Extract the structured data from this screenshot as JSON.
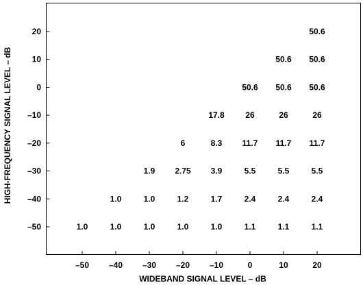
{
  "chart_data": {
    "type": "table",
    "title": "",
    "xlabel": "WIDEBAND SIGNAL LEVEL – dB",
    "ylabel": "HIGH-FREQUENCY SIGNAL LEVEL – dB",
    "x_ticks": [
      "–50",
      "–40",
      "–30",
      "–20",
      "–10",
      "0",
      "10",
      "20"
    ],
    "y_ticks": [
      "20",
      "10",
      "0",
      "–10",
      "–20",
      "–30",
      "–40",
      "–50"
    ],
    "x_values": [
      -50,
      -40,
      -30,
      -20,
      -10,
      0,
      10,
      20
    ],
    "y_values": [
      20,
      10,
      0,
      -10,
      -20,
      -30,
      -40,
      -50
    ],
    "xlim": [
      -60,
      30
    ],
    "ylim": [
      -60,
      30
    ],
    "grid": false,
    "cells": [
      {
        "x": 20,
        "y": 20,
        "label": "50.6"
      },
      {
        "x": 10,
        "y": 10,
        "label": "50.6"
      },
      {
        "x": 20,
        "y": 10,
        "label": "50.6"
      },
      {
        "x": 0,
        "y": 0,
        "label": "50.6"
      },
      {
        "x": 10,
        "y": 0,
        "label": "50.6"
      },
      {
        "x": 20,
        "y": 0,
        "label": "50.6"
      },
      {
        "x": -10,
        "y": -10,
        "label": "17.8"
      },
      {
        "x": 0,
        "y": -10,
        "label": "26"
      },
      {
        "x": 10,
        "y": -10,
        "label": "26"
      },
      {
        "x": 20,
        "y": -10,
        "label": "26"
      },
      {
        "x": -20,
        "y": -20,
        "label": "6"
      },
      {
        "x": -10,
        "y": -20,
        "label": "8.3"
      },
      {
        "x": 0,
        "y": -20,
        "label": "11.7"
      },
      {
        "x": 10,
        "y": -20,
        "label": "11.7"
      },
      {
        "x": 20,
        "y": -20,
        "label": "11.7"
      },
      {
        "x": -30,
        "y": -30,
        "label": "1.9"
      },
      {
        "x": -20,
        "y": -30,
        "label": "2.75"
      },
      {
        "x": -10,
        "y": -30,
        "label": "3.9"
      },
      {
        "x": 0,
        "y": -30,
        "label": "5.5"
      },
      {
        "x": 10,
        "y": -30,
        "label": "5.5"
      },
      {
        "x": 20,
        "y": -30,
        "label": "5.5"
      },
      {
        "x": -40,
        "y": -40,
        "label": "1.0"
      },
      {
        "x": -30,
        "y": -40,
        "label": "1.0"
      },
      {
        "x": -20,
        "y": -40,
        "label": "1.2"
      },
      {
        "x": -10,
        "y": -40,
        "label": "1.7"
      },
      {
        "x": 0,
        "y": -40,
        "label": "2.4"
      },
      {
        "x": 10,
        "y": -40,
        "label": "2.4"
      },
      {
        "x": 20,
        "y": -40,
        "label": "2.4"
      },
      {
        "x": -50,
        "y": -50,
        "label": "1.0"
      },
      {
        "x": -40,
        "y": -50,
        "label": "1.0"
      },
      {
        "x": -30,
        "y": -50,
        "label": "1.0"
      },
      {
        "x": -20,
        "y": -50,
        "label": "1.0"
      },
      {
        "x": -10,
        "y": -50,
        "label": "1.0"
      },
      {
        "x": 0,
        "y": -50,
        "label": "1.1"
      },
      {
        "x": 10,
        "y": -50,
        "label": "1.1"
      },
      {
        "x": 20,
        "y": -50,
        "label": "1.1"
      }
    ],
    "colors": {
      "axis": "#000000",
      "text": "#000000",
      "background": "#ffffff"
    }
  }
}
